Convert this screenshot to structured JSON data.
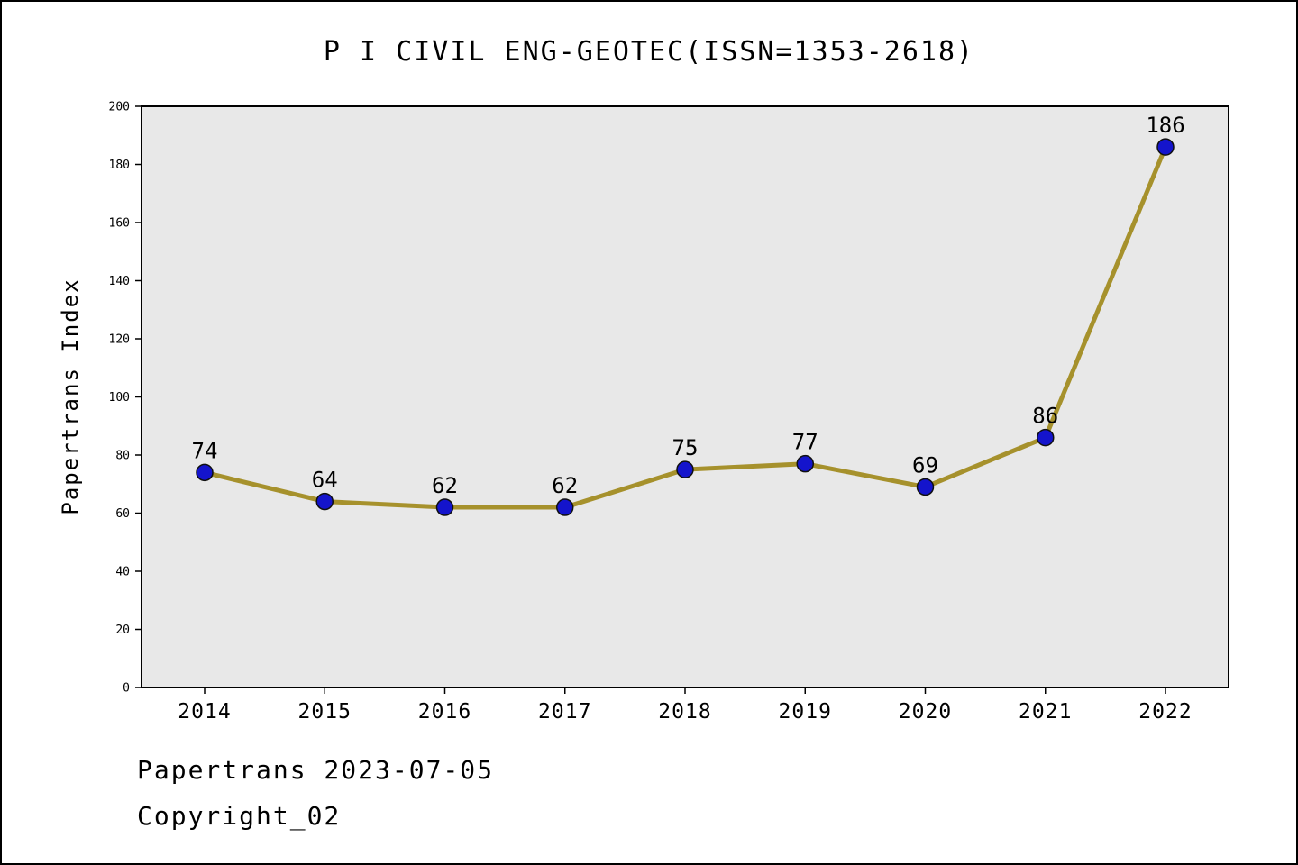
{
  "chart_data": {
    "type": "line",
    "title": "P I CIVIL ENG-GEOTEC(ISSN=1353-2618)",
    "ylabel": "Papertrans Index",
    "xlabel": "",
    "categories": [
      "2014",
      "2015",
      "2016",
      "2017",
      "2018",
      "2019",
      "2020",
      "2021",
      "2022"
    ],
    "values": [
      74,
      64,
      62,
      62,
      75,
      77,
      69,
      86,
      186
    ],
    "ylim": [
      0,
      200
    ],
    "ytick_step": 20,
    "grid": false,
    "legend_position": "none",
    "line_color": "#a6912c",
    "marker_color": "#1414cc",
    "marker_edge_color": "#101010",
    "plot_bg": "#e8e8e8",
    "axis_color": "#000000"
  },
  "footer": {
    "line1": "Papertrans 2023-07-05",
    "line2": "Copyright_02"
  }
}
